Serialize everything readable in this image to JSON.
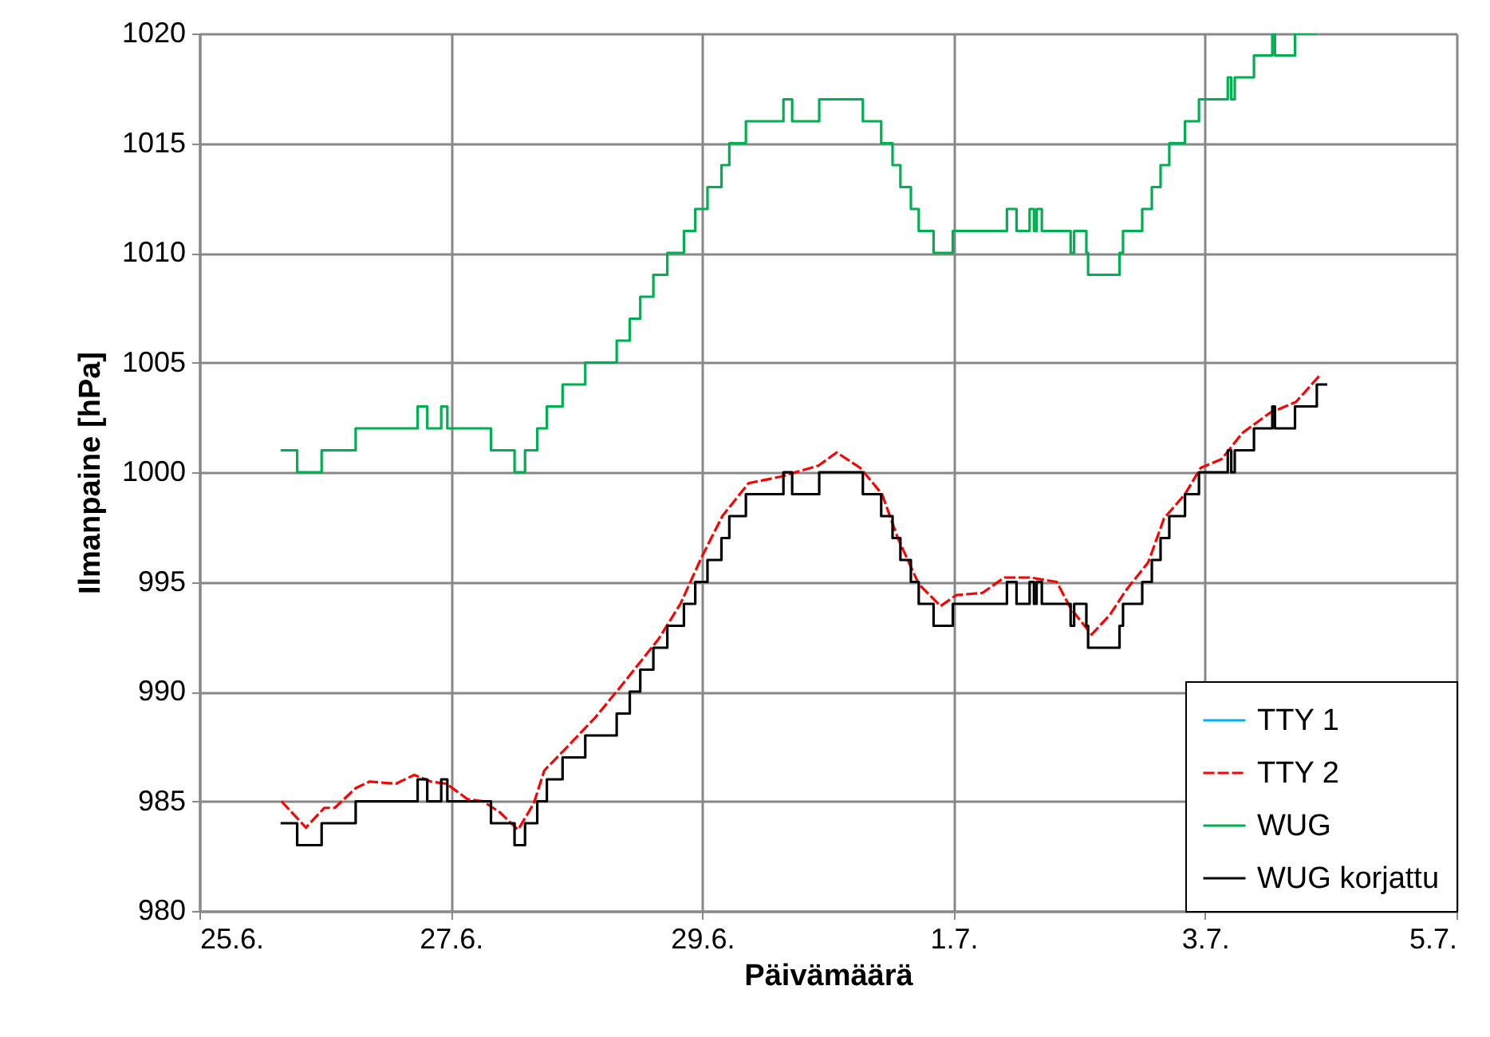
{
  "chart_data": {
    "type": "line",
    "xlabel": "Päivämäärä",
    "ylabel": "Ilmanpaine [hPa]",
    "xlim": [
      "--06-25",
      "--07-05"
    ],
    "ylim": [
      980,
      1020
    ],
    "xticks": [
      {
        "value": "--06-25",
        "label": "25.6."
      },
      {
        "value": "--06-27",
        "label": "27.6."
      },
      {
        "value": "--06-29",
        "label": "29.6."
      },
      {
        "value": "--07-01",
        "label": "1.7."
      },
      {
        "value": "--07-03",
        "label": "3.7."
      },
      {
        "value": "--07-05",
        "label": "5.7."
      }
    ],
    "yticks": [
      980,
      985,
      990,
      995,
      1000,
      1005,
      1010,
      1015,
      1020
    ],
    "grid": true,
    "legend": "bottom right",
    "marker": "none",
    "series": [
      {
        "name": "TTY 1",
        "color": "#00b0f0",
        "line_style": "solid"
      },
      {
        "name": "TTY 2",
        "color": "#ff0000",
        "line_style": "dashed",
        "x": [
          "--06-25T15:40",
          "--06-25T20:20",
          "--06-25T23:50",
          "--06-26T01:50",
          "--06-26T05:50",
          "--06-26T08:30",
          "--06-26T13:30",
          "--06-26T17:00",
          "--06-26T20:10",
          "--06-26T23:10",
          "--06-27T03:10",
          "--06-27T06:10",
          "--06-27T09:20",
          "--06-27T12:50",
          "--06-27T15:50",
          "--06-27T17:50",
          "--06-27T21:30",
          "--06-28T03:30",
          "--06-28T08:40",
          "--06-28T11:40",
          "--06-28T15:40",
          "--06-28T19:50",
          "--06-28T23:50",
          "--06-29T03:50",
          "--06-29T08:50",
          "--06-29T15:00",
          "--06-29T22:10",
          "--06-30T01:40",
          "--06-30T06:10",
          "--06-30T10:20",
          "--06-30T13:20",
          "--06-30T17:20",
          "--06-30T21:30",
          "--07-01T00:30",
          "--07-01T05:30",
          "--07-01T09:40",
          "--07-01T14:40",
          "--07-01T19:40",
          "--07-01T22:20",
          "--07-02T02:20",
          "--07-02T05:50",
          "--07-02T08:50",
          "--07-02T13:10",
          "--07-02T16:10",
          "--07-02T20:10",
          "--07-02T23:10",
          "--07-03T03:10",
          "--07-03T07:10",
          "--07-03T12:20",
          "--07-03T17:20",
          "--07-03T21:50"
        ],
        "values": [
          985.0,
          983.8,
          984.7,
          984.7,
          985.6,
          985.9,
          985.8,
          986.2,
          985.9,
          985.8,
          985.1,
          985.0,
          984.5,
          983.7,
          984.9,
          986.4,
          987.3,
          988.8,
          990.3,
          991.2,
          992.4,
          994.0,
          996.1,
          998.0,
          999.5,
          999.8,
          1000.3,
          1000.9,
          1000.2,
          999.0,
          997.0,
          994.9,
          993.9,
          994.4,
          994.5,
          995.2,
          995.2,
          995.0,
          993.8,
          992.6,
          993.5,
          994.6,
          995.9,
          997.9,
          999.0,
          1000.2,
          1000.6,
          1001.8,
          1002.7,
          1003.2,
          1004.4
        ]
      },
      {
        "name": "WUG",
        "color": "#00b050",
        "type": "step",
        "line_style": "solid",
        "x": [
          "--06-25T15:30",
          "--06-25T18:40",
          "--06-25T23:20",
          "--06-26T05:50",
          "--06-26T17:40",
          "--06-26T19:30",
          "--06-26T22:10",
          "--06-26T23:20",
          "--06-27T07:40",
          "--06-27T12:10",
          "--06-27T14:10",
          "--06-27T16:30",
          "--06-27T18:20",
          "--06-27T21:20",
          "--06-28T01:40",
          "--06-28T07:40",
          "--06-28T10:10",
          "--06-28T12:10",
          "--06-28T14:40",
          "--06-28T17:20",
          "--06-28T20:30",
          "--06-28T22:40",
          "--06-29T01:00",
          "--06-29T03:40",
          "--06-29T05:10",
          "--06-29T08:20",
          "--06-29T15:30",
          "--06-29T17:10",
          "--06-29T22:20",
          "--06-30T06:40",
          "--06-30T10:10",
          "--06-30T12:20",
          "--06-30T13:50",
          "--06-30T15:50",
          "--06-30T17:20",
          "--06-30T20:10",
          "--06-30T23:50",
          "--07-01T10:10",
          "--07-01T12:00",
          "--07-01T14:30",
          "--07-01T15:20",
          "--07-01T15:50",
          "--07-01T16:50",
          "--07-01T22:20",
          "--07-01T23:00",
          "--07-02T01:20",
          "--07-02T01:40",
          "--07-02T07:40",
          "--07-02T08:20",
          "--07-02T12:00",
          "--07-02T13:50",
          "--07-02T15:30",
          "--07-02T17:10",
          "--07-02T20:10",
          "--07-02T22:50",
          "--07-03T04:20",
          "--07-03T05:00",
          "--07-03T05:40",
          "--07-03T09:20",
          "--07-03T12:50",
          "--07-03T13:20",
          "--07-03T17:10",
          "--07-03T21:20"
        ],
        "values": [
          1001,
          1000,
          1001,
          1002,
          1003,
          1002,
          1003,
          1002,
          1001,
          1000,
          1001,
          1002,
          1003,
          1004,
          1005,
          1006,
          1007,
          1008,
          1009,
          1010,
          1011,
          1012,
          1013,
          1014,
          1015,
          1016,
          1017,
          1016,
          1017,
          1016,
          1015,
          1014,
          1013,
          1012,
          1011,
          1010,
          1011,
          1012,
          1011,
          1012,
          1011,
          1012,
          1011,
          1010,
          1011,
          1010,
          1009,
          1010,
          1011,
          1012,
          1013,
          1014,
          1015,
          1016,
          1017,
          1018,
          1017,
          1018,
          1019,
          1020,
          1019,
          1020,
          1020
        ]
      },
      {
        "name": "WUG korjattu",
        "color": "#000000",
        "type": "step",
        "line_style": "solid",
        "x": [
          "--06-25T15:30",
          "--06-25T18:40",
          "--06-25T23:20",
          "--06-26T05:50",
          "--06-26T17:40",
          "--06-26T19:30",
          "--06-26T22:10",
          "--06-26T23:20",
          "--06-27T07:40",
          "--06-27T12:10",
          "--06-27T14:10",
          "--06-27T16:30",
          "--06-27T18:20",
          "--06-27T21:20",
          "--06-28T01:40",
          "--06-28T07:40",
          "--06-28T10:10",
          "--06-28T12:10",
          "--06-28T14:40",
          "--06-28T17:20",
          "--06-28T20:30",
          "--06-28T22:40",
          "--06-29T01:00",
          "--06-29T03:40",
          "--06-29T05:10",
          "--06-29T08:20",
          "--06-29T15:30",
          "--06-29T17:10",
          "--06-29T22:20",
          "--06-30T06:40",
          "--06-30T10:10",
          "--06-30T12:20",
          "--06-30T13:50",
          "--06-30T15:50",
          "--06-30T17:20",
          "--06-30T20:10",
          "--06-30T23:50",
          "--07-01T10:10",
          "--07-01T12:00",
          "--07-01T14:30",
          "--07-01T15:20",
          "--07-01T15:50",
          "--07-01T16:50",
          "--07-01T22:20",
          "--07-01T23:00",
          "--07-02T01:20",
          "--07-02T01:40",
          "--07-02T07:40",
          "--07-02T08:20",
          "--07-02T12:00",
          "--07-02T13:50",
          "--07-02T15:30",
          "--07-02T17:10",
          "--07-02T20:10",
          "--07-02T22:50",
          "--07-03T04:20",
          "--07-03T05:00",
          "--07-03T05:40",
          "--07-03T09:20",
          "--07-03T12:50",
          "--07-03T13:20",
          "--07-03T17:10",
          "--07-03T21:20",
          "--07-03T23:20"
        ],
        "values": [
          984,
          983,
          984,
          985,
          986,
          985,
          986,
          985,
          984,
          983,
          984,
          985,
          986,
          987,
          988,
          989,
          990,
          991,
          992,
          993,
          994,
          995,
          996,
          997,
          998,
          999,
          1000,
          999,
          1000,
          999,
          998,
          997,
          996,
          995,
          994,
          993,
          994,
          995,
          994,
          995,
          994,
          995,
          994,
          993,
          994,
          993,
          992,
          993,
          994,
          995,
          996,
          997,
          998,
          999,
          1000,
          1001,
          1000,
          1001,
          1002,
          1003,
          1002,
          1003,
          1004,
          1004
        ]
      }
    ]
  }
}
